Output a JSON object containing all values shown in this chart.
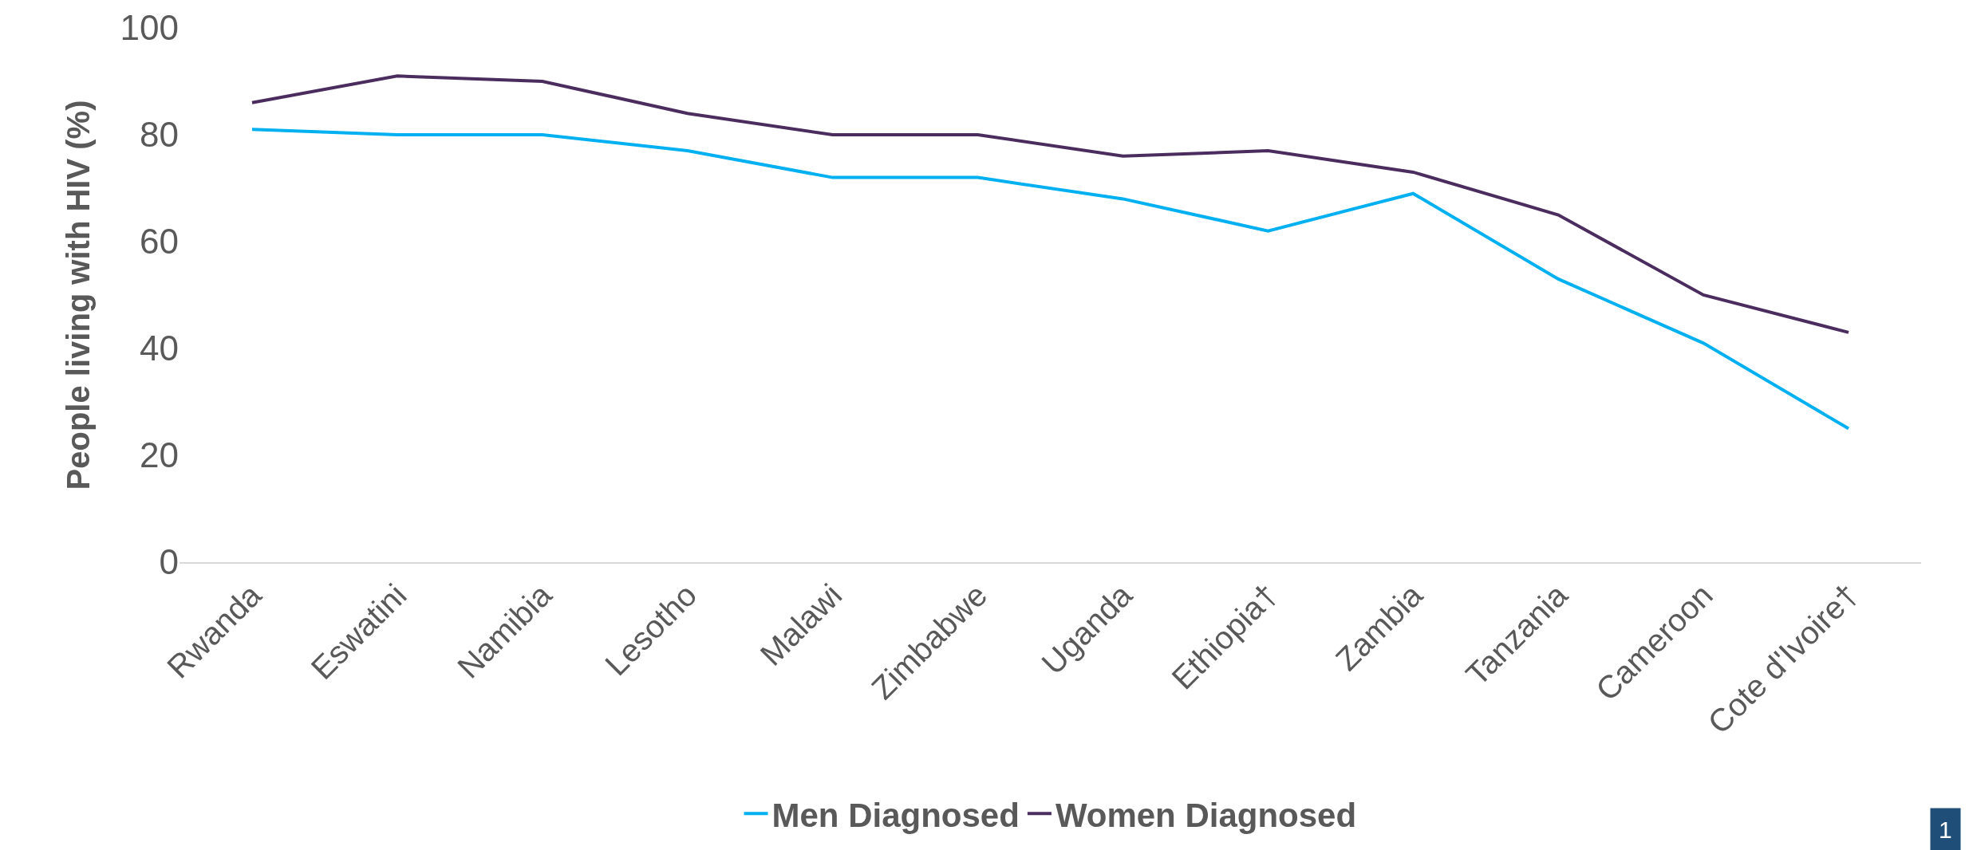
{
  "chart_data": {
    "type": "line",
    "ylabel": "People living with HIV (%)",
    "categories": [
      "Rwanda",
      "Eswatini",
      "Namibia",
      "Lesotho",
      "Malawi",
      "Zimbabwe",
      "Uganda",
      "Ethiopia†",
      "Zambia",
      "Tanzania",
      "Cameroon",
      "Cote d'Ivoire†"
    ],
    "series": [
      {
        "name": "Men Diagnosed",
        "color": "#00b0f0",
        "values": [
          81,
          80,
          80,
          77,
          72,
          72,
          68,
          62,
          69,
          53,
          41,
          25
        ]
      },
      {
        "name": "Women Diagnosed",
        "color": "#4b2c5e",
        "values": [
          86,
          91,
          90,
          84,
          80,
          80,
          76,
          77,
          73,
          65,
          50,
          43
        ]
      }
    ],
    "ylim": [
      0,
      100
    ],
    "yticks": [
      0,
      20,
      40,
      60,
      80,
      100
    ],
    "grid": false,
    "legend": "bottom",
    "marker": "none",
    "line_style": "solid",
    "annotations": [
      "1"
    ]
  }
}
